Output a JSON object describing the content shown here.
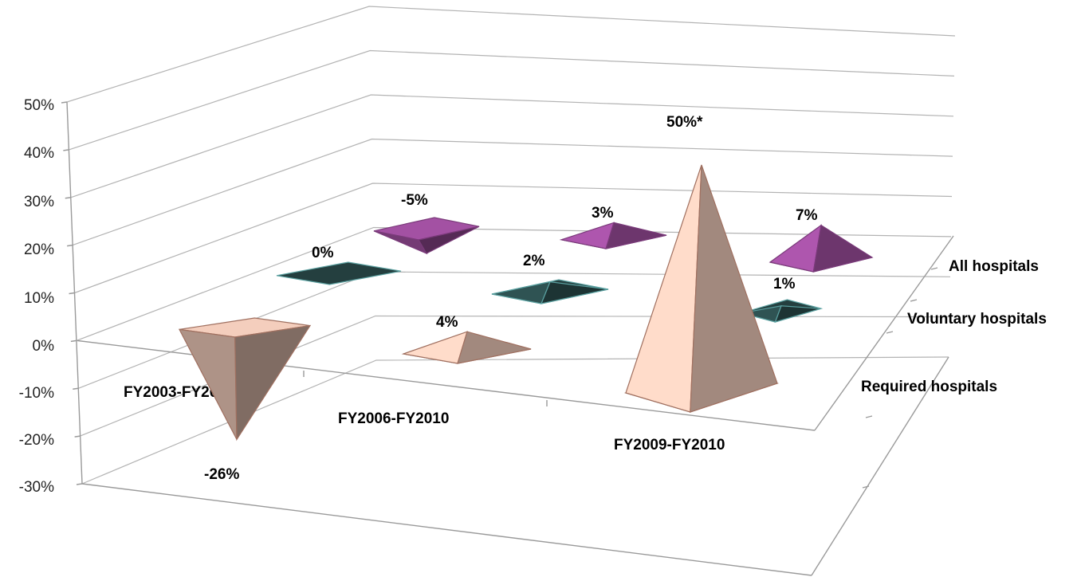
{
  "chart_data": {
    "type": "3d-pyramid",
    "title": "",
    "xlabel": "",
    "ylabel": "",
    "categories": [
      "FY2003-FY2010",
      "FY2006-FY2010",
      "FY2009-FY2010"
    ],
    "ylim": [
      -30,
      50
    ],
    "y_ticks": [
      "50%",
      "40%",
      "30%",
      "20%",
      "10%",
      "0%",
      "-10%",
      "-20%",
      "-30%"
    ],
    "grid": true,
    "legend": "none",
    "series": [
      {
        "name": "All hospitals",
        "color": "#9b4d9b",
        "values": [
          -5,
          3,
          7
        ],
        "labels": [
          "-5%",
          "3%",
          "7%"
        ]
      },
      {
        "name": "Voluntary hospitals",
        "color": "#2a4a4a",
        "values": [
          0,
          2,
          1
        ],
        "labels": [
          "0%",
          "2%",
          "1%"
        ]
      },
      {
        "name": "Required hospitals",
        "color": "#e8c4b4",
        "values": [
          -26,
          4,
          50
        ],
        "labels": [
          "-26%",
          "4%",
          "50%*"
        ]
      }
    ]
  }
}
